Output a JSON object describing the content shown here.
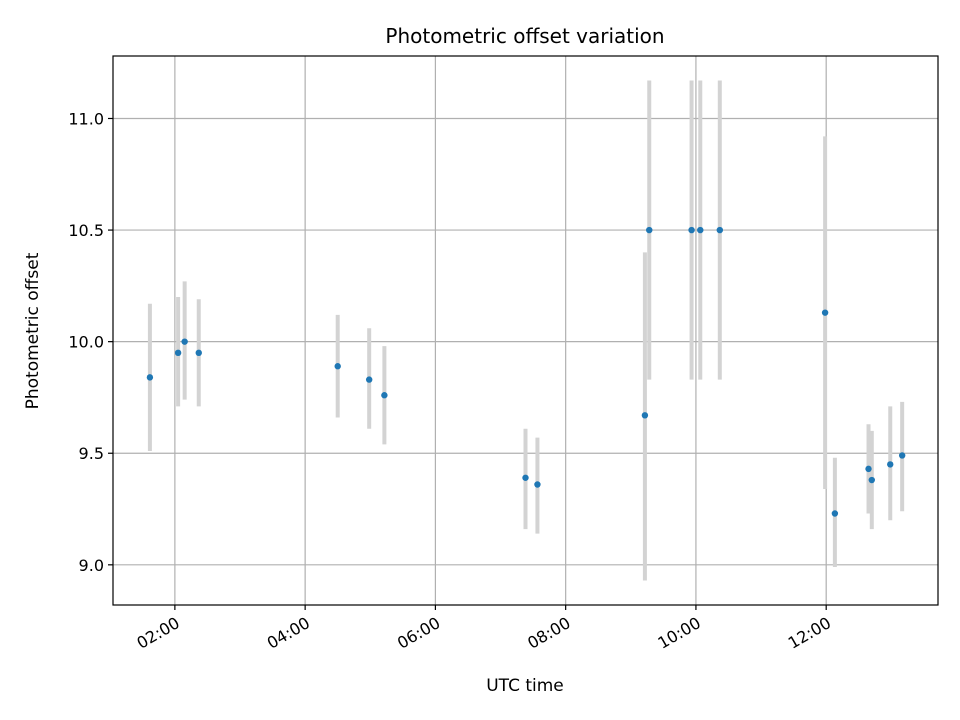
{
  "chart_data": {
    "type": "scatter",
    "title": "Photometric offset variation",
    "xlabel": "UTC time",
    "ylabel": "Photometric offset",
    "x_ticks": [
      "02:00",
      "04:00",
      "06:00",
      "08:00",
      "10:00",
      "12:00"
    ],
    "y_ticks": [
      "9.0",
      "9.5",
      "10.0",
      "10.5",
      "11.0"
    ],
    "xlim": [
      "01:03",
      "13:43"
    ],
    "ylim": [
      8.82,
      11.28
    ],
    "grid": true,
    "colors": {
      "point": "#1f77b4",
      "errorbar": "#d3d3d3",
      "grid": "#b0b0b0"
    },
    "points": [
      {
        "x": "01:37",
        "y": 9.84,
        "err_low": 9.51,
        "err_high": 10.17
      },
      {
        "x": "02:03",
        "y": 9.95,
        "err_low": 9.71,
        "err_high": 10.2
      },
      {
        "x": "02:09",
        "y": 10.0,
        "err_low": 9.74,
        "err_high": 10.27
      },
      {
        "x": "02:22",
        "y": 9.95,
        "err_low": 9.71,
        "err_high": 10.19
      },
      {
        "x": "04:30",
        "y": 9.89,
        "err_low": 9.66,
        "err_high": 10.12
      },
      {
        "x": "04:59",
        "y": 9.83,
        "err_low": 9.61,
        "err_high": 10.06
      },
      {
        "x": "05:13",
        "y": 9.76,
        "err_low": 9.54,
        "err_high": 9.98
      },
      {
        "x": "07:23",
        "y": 9.39,
        "err_low": 9.16,
        "err_high": 9.61
      },
      {
        "x": "07:34",
        "y": 9.36,
        "err_low": 9.14,
        "err_high": 9.57
      },
      {
        "x": "09:13",
        "y": 9.67,
        "err_low": 8.93,
        "err_high": 10.4
      },
      {
        "x": "09:17",
        "y": 10.5,
        "err_low": 9.83,
        "err_high": 11.17
      },
      {
        "x": "09:56",
        "y": 10.5,
        "err_low": 9.83,
        "err_high": 11.17
      },
      {
        "x": "10:04",
        "y": 10.5,
        "err_low": 9.83,
        "err_high": 11.17
      },
      {
        "x": "10:22",
        "y": 10.5,
        "err_low": 9.83,
        "err_high": 11.17
      },
      {
        "x": "11:59",
        "y": 10.13,
        "err_low": 9.34,
        "err_high": 10.92
      },
      {
        "x": "12:08",
        "y": 9.23,
        "err_low": 8.99,
        "err_high": 9.48
      },
      {
        "x": "12:39",
        "y": 9.43,
        "err_low": 9.23,
        "err_high": 9.63
      },
      {
        "x": "12:42",
        "y": 9.38,
        "err_low": 9.16,
        "err_high": 9.6
      },
      {
        "x": "12:59",
        "y": 9.45,
        "err_low": 9.2,
        "err_high": 9.71
      },
      {
        "x": "13:10",
        "y": 9.49,
        "err_low": 9.24,
        "err_high": 9.73
      }
    ]
  }
}
